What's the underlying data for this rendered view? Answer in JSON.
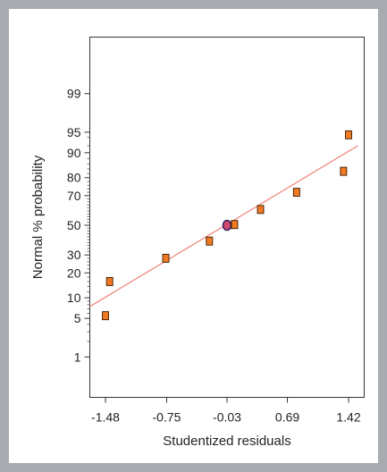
{
  "colors": {
    "frame": "#a8abb0",
    "fit_line": "#f08a80",
    "point_fill": "#f07a22",
    "point_stroke": "#3a1a00",
    "highlight_fill": "#d24b6e",
    "highlight_stroke": "#3b2060"
  },
  "chart_data": {
    "type": "scatter",
    "title": "",
    "xlabel": "Studentized residuals",
    "ylabel": "Normal % probability",
    "x_ticks": [
      "-1.48",
      "-0.75",
      "-0.03",
      "0.69",
      "1.42"
    ],
    "y_ticks": [
      "1",
      "5",
      "10",
      "20",
      "30",
      "50",
      "70",
      "80",
      "90",
      "95",
      "99"
    ],
    "y_scale": "normal-probability",
    "xlim": [
      -1.48,
      1.42
    ],
    "points": [
      {
        "x": -1.48,
        "y": 5.5,
        "marker": "square"
      },
      {
        "x": -1.43,
        "y": 16,
        "marker": "square"
      },
      {
        "x": -0.76,
        "y": 28,
        "marker": "square"
      },
      {
        "x": -0.24,
        "y": 39,
        "marker": "square"
      },
      {
        "x": -0.03,
        "y": 50,
        "marker": "circle"
      },
      {
        "x": 0.06,
        "y": 50.5,
        "marker": "square"
      },
      {
        "x": 0.37,
        "y": 61,
        "marker": "square"
      },
      {
        "x": 0.8,
        "y": 72,
        "marker": "square"
      },
      {
        "x": 1.36,
        "y": 83,
        "marker": "square"
      },
      {
        "x": 1.42,
        "y": 94.5,
        "marker": "square"
      }
    ],
    "fit_line": [
      {
        "x": -1.67,
        "y": 7.5
      },
      {
        "x": 1.53,
        "y": 92
      }
    ],
    "grid": false,
    "legend": "none"
  }
}
